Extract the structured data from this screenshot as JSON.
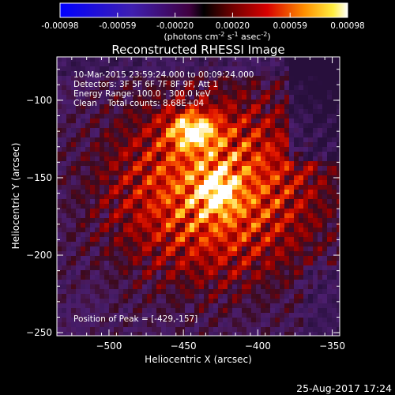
{
  "chart_data": {
    "type": "heatmap",
    "title": "Reconstructed RHESSI Image",
    "xlabel": "Heliocentric X (arcsec)",
    "ylabel": "Heliocentric Y (arcsec)",
    "xlim": [
      -535,
      -345
    ],
    "ylim": [
      -252,
      -72
    ],
    "x_ticks": [
      -500,
      -450,
      -400,
      -350
    ],
    "y_ticks": [
      -100,
      -150,
      -200,
      -250
    ],
    "colorbar": {
      "range": [
        -0.00098,
        0.00098
      ],
      "ticks": [
        "-0.00098",
        "-0.00059",
        "-0.00020",
        "0.00020",
        "0.00059",
        "0.00098"
      ],
      "label_main": "(photons cm",
      "label_exp1": "-2",
      "label_mid": " s",
      "label_exp2": "-1",
      "label_end": " asec",
      "label_exp3": "-2",
      "label_close": ")"
    },
    "annotations": [
      "10-Mar-2015 23:59:24.000 to 00:09:24.000",
      "Detectors: 3F 5F 6F 7F 8F 9F, Att 1",
      "Energy Range: 100.0 - 300.0 keV",
      "Clean    Total counts: 8.68E+04"
    ],
    "peak_label": "Position of Peak = [-429,-157]",
    "peak": [
      -429,
      -157
    ]
  },
  "footer": {
    "date": "25-Aug-2017 17:24"
  }
}
